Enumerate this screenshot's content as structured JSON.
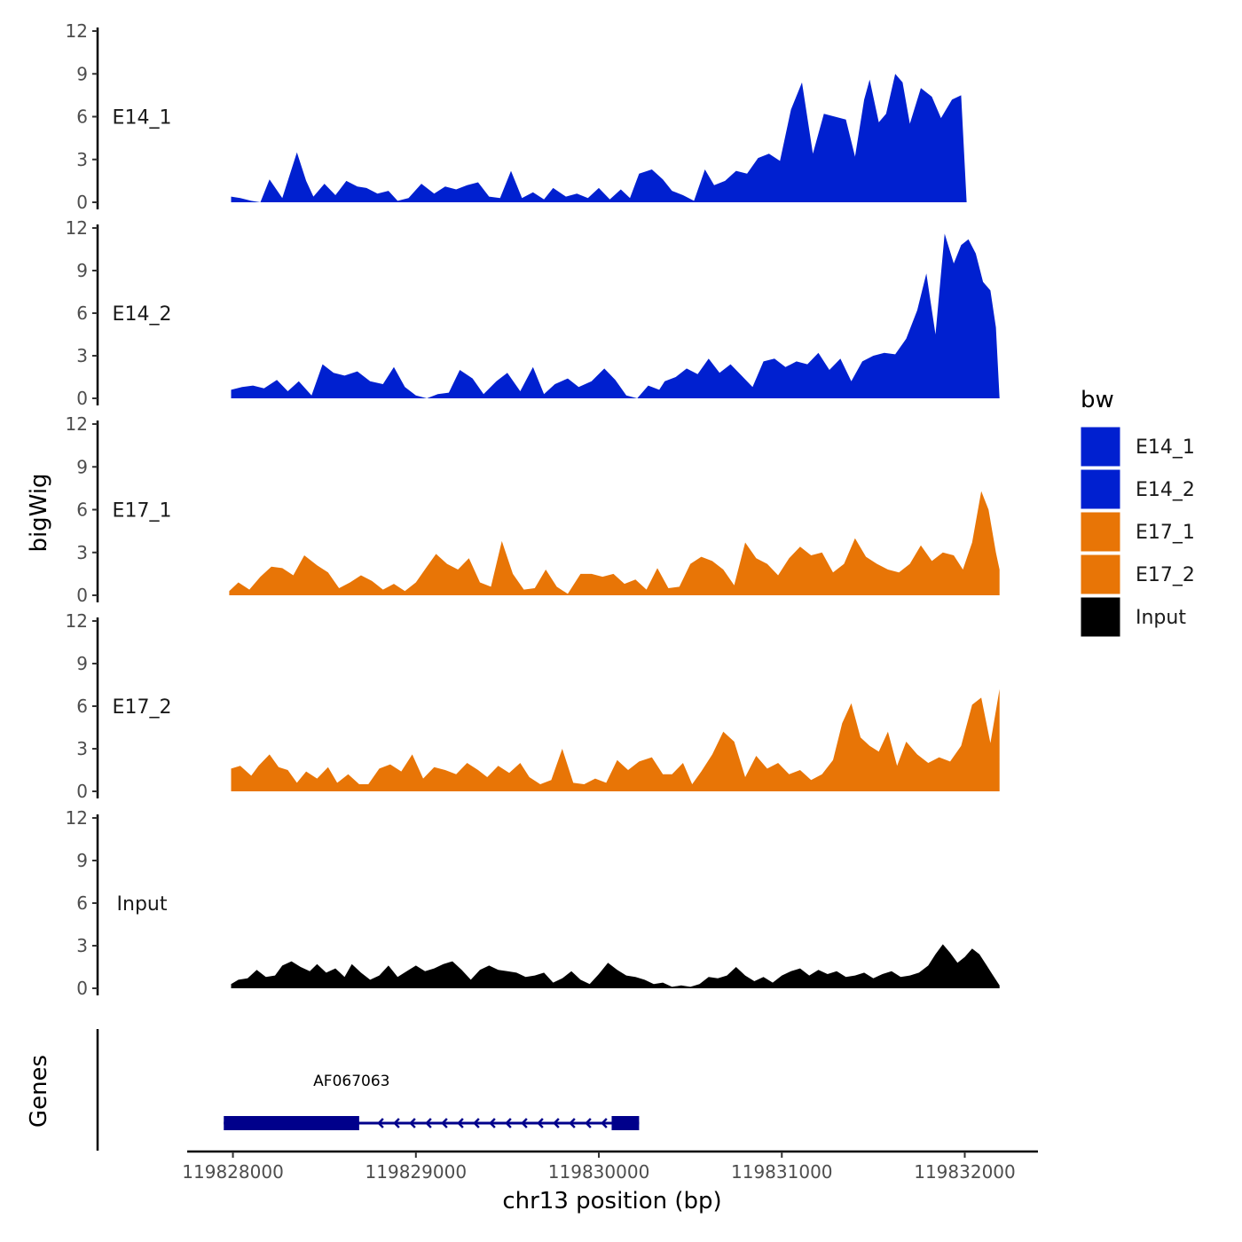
{
  "chart_data": {
    "type": "area",
    "title": "",
    "xlabel": "chr13 position (bp)",
    "ylabel": "bigWig",
    "xlim": [
      119827750,
      119832400
    ],
    "ylim": [
      0,
      12
    ],
    "x_ticks": [
      119828000,
      119829000,
      119830000,
      119831000,
      119832000
    ],
    "y_ticks": [
      0,
      3,
      6,
      9,
      12
    ],
    "legend": {
      "title": "bw",
      "position": "right",
      "entries": [
        {
          "label": "E14_1",
          "color": "#0020d0"
        },
        {
          "label": "E14_2",
          "color": "#0020d0"
        },
        {
          "label": "E17_1",
          "color": "#e87506"
        },
        {
          "label": "E17_2",
          "color": "#e87506"
        },
        {
          "label": "Input",
          "color": "#000000"
        }
      ]
    },
    "tracks": [
      {
        "name": "E14_1",
        "color": "#0020d0",
        "x": [
          119827990,
          119828040,
          119828100,
          119828150,
          119828200,
          119828270,
          119828350,
          119828400,
          119828440,
          119828500,
          119828560,
          119828620,
          119828680,
          119828730,
          119828790,
          119828850,
          119828900,
          119828960,
          119829030,
          119829100,
          119829160,
          119829220,
          119829280,
          119829340,
          119829400,
          119829460,
          119829520,
          119829580,
          119829640,
          119829700,
          119829750,
          119829820,
          119829880,
          119829940,
          119830000,
          119830060,
          119830120,
          119830170,
          119830220,
          119830290,
          119830350,
          119830400,
          119830460,
          119830520,
          119830580,
          119830630,
          119830690,
          119830750,
          119830810,
          119830870,
          119830930,
          119830990,
          119831050,
          119831110,
          119831170,
          119831230,
          119831290,
          119831350,
          119831400,
          119831450,
          119831480,
          119831530,
          119831570,
          119831620,
          119831660,
          119831700,
          119831760,
          119831820,
          119831870,
          119831930,
          119831980,
          119832010,
          119832040,
          119832080,
          119832120,
          119832160,
          119832190,
          119832190
        ],
        "values": [
          0.4,
          0.3,
          0.1,
          0.0,
          1.6,
          0.3,
          3.5,
          1.5,
          0.4,
          1.3,
          0.5,
          1.5,
          1.1,
          1.0,
          0.6,
          0.8,
          0.1,
          0.3,
          1.3,
          0.6,
          1.1,
          0.9,
          1.2,
          1.4,
          0.4,
          0.3,
          2.2,
          0.3,
          0.7,
          0.2,
          1.0,
          0.4,
          0.6,
          0.3,
          1.0,
          0.2,
          0.9,
          0.3,
          2.0,
          2.3,
          1.6,
          0.8,
          0.5,
          0.1,
          2.3,
          1.2,
          1.5,
          2.2,
          2.0,
          3.1,
          3.4,
          2.9,
          6.5,
          8.4,
          3.4,
          6.2,
          6.0,
          5.8,
          3.2,
          7.2,
          8.6,
          5.6,
          6.2,
          9.0,
          8.4,
          5.5,
          8.0,
          7.4,
          5.9,
          7.2,
          7.5,
          0.0,
          0.0,
          0.0,
          0.0,
          0.0,
          0.0,
          0.0
        ]
      },
      {
        "name": "E14_2",
        "color": "#0020d0",
        "x": [
          119827990,
          119828050,
          119828110,
          119828170,
          119828240,
          119828300,
          119828360,
          119828430,
          119828490,
          119828550,
          119828610,
          119828680,
          119828750,
          119828820,
          119828880,
          119828940,
          119829000,
          119829060,
          119829120,
          119829180,
          119829240,
          119829310,
          119829370,
          119829440,
          119829500,
          119829570,
          119829640,
          119829700,
          119829760,
          119829830,
          119829890,
          119829960,
          119830030,
          119830090,
          119830150,
          119830210,
          119830270,
          119830330,
          119830360,
          119830420,
          119830480,
          119830540,
          119830600,
          119830660,
          119830720,
          119830780,
          119830840,
          119830900,
          119830960,
          119831020,
          119831080,
          119831140,
          119831200,
          119831260,
          119831320,
          119831380,
          119831440,
          119831500,
          119831560,
          119831620,
          119831680,
          119831740,
          119831790,
          119831840,
          119831890,
          119831940,
          119831980,
          119832020,
          119832060,
          119832100,
          119832140,
          119832170,
          119832190
        ],
        "values": [
          0.6,
          0.8,
          0.9,
          0.7,
          1.3,
          0.5,
          1.2,
          0.2,
          2.4,
          1.8,
          1.6,
          1.9,
          1.2,
          1.0,
          2.2,
          0.8,
          0.2,
          0.0,
          0.3,
          0.4,
          2.0,
          1.4,
          0.3,
          1.2,
          1.8,
          0.5,
          2.2,
          0.3,
          1.0,
          1.4,
          0.8,
          1.2,
          2.1,
          1.3,
          0.2,
          0.0,
          0.9,
          0.6,
          1.2,
          1.5,
          2.1,
          1.7,
          2.8,
          1.8,
          2.4,
          1.6,
          0.8,
          2.6,
          2.8,
          2.2,
          2.6,
          2.4,
          3.2,
          2.0,
          2.8,
          1.2,
          2.6,
          3.0,
          3.2,
          3.1,
          4.2,
          6.2,
          8.8,
          4.5,
          11.6,
          9.5,
          10.8,
          11.2,
          10.2,
          8.2,
          7.6,
          5.0,
          0.0
        ]
      },
      {
        "name": "E17_1",
        "color": "#e87506",
        "x": [
          119827980,
          119828030,
          119828090,
          119828150,
          119828210,
          119828270,
          119828330,
          119828390,
          119828460,
          119828520,
          119828580,
          119828640,
          119828700,
          119828760,
          119828820,
          119828880,
          119828940,
          119829000,
          119829060,
          119829110,
          119829170,
          119829230,
          119829290,
          119829350,
          119829410,
          119829470,
          119829530,
          119829590,
          119829650,
          119829710,
          119829770,
          119829830,
          119829900,
          119829960,
          119830020,
          119830080,
          119830140,
          119830200,
          119830260,
          119830320,
          119830380,
          119830440,
          119830500,
          119830560,
          119830620,
          119830680,
          119830740,
          119830800,
          119830860,
          119830920,
          119830980,
          119831040,
          119831100,
          119831160,
          119831220,
          119831280,
          119831340,
          119831400,
          119831460,
          119831520,
          119831580,
          119831640,
          119831700,
          119831760,
          119831820,
          119831880,
          119831940,
          119831990,
          119832040,
          119832090,
          119832130,
          119832170,
          119832190
        ],
        "values": [
          0.3,
          0.9,
          0.4,
          1.3,
          2.0,
          1.9,
          1.4,
          2.8,
          2.1,
          1.6,
          0.5,
          0.9,
          1.4,
          1.0,
          0.4,
          0.8,
          0.3,
          0.9,
          2.0,
          2.9,
          2.2,
          1.8,
          2.6,
          0.9,
          0.6,
          3.8,
          1.5,
          0.4,
          0.5,
          1.8,
          0.6,
          0.1,
          1.5,
          1.5,
          1.3,
          1.5,
          0.8,
          1.1,
          0.4,
          1.9,
          0.5,
          0.6,
          2.2,
          2.7,
          2.4,
          1.8,
          0.7,
          3.7,
          2.6,
          2.2,
          1.4,
          2.6,
          3.4,
          2.8,
          3.0,
          1.6,
          2.2,
          4.0,
          2.7,
          2.2,
          1.8,
          1.6,
          2.2,
          3.5,
          2.4,
          3.0,
          2.8,
          1.8,
          3.7,
          7.3,
          6.0,
          3.0,
          1.8
        ]
      },
      {
        "name": "E17_2",
        "color": "#e87506",
        "x": [
          119827990,
          119828040,
          119828100,
          119828140,
          119828200,
          119828250,
          119828300,
          119828350,
          119828400,
          119828460,
          119828520,
          119828570,
          119828630,
          119828690,
          119828740,
          119828800,
          119828860,
          119828920,
          119828980,
          119829040,
          119829100,
          119829160,
          119829220,
          119829280,
          119829340,
          119829390,
          119829450,
          119829510,
          119829570,
          119829620,
          119829680,
          119829740,
          119829800,
          119829860,
          119829920,
          119829980,
          119830040,
          119830100,
          119830160,
          119830220,
          119830290,
          119830350,
          119830400,
          119830460,
          119830510,
          119830560,
          119830620,
          119830680,
          119830740,
          119830800,
          119830860,
          119830920,
          119830980,
          119831040,
          119831100,
          119831160,
          119831220,
          119831280,
          119831330,
          119831380,
          119831430,
          119831480,
          119831530,
          119831580,
          119831630,
          119831680,
          119831740,
          119831800,
          119831860,
          119831920,
          119831980,
          119832040,
          119832090,
          119832140,
          119832190
        ],
        "values": [
          1.6,
          1.8,
          1.1,
          1.8,
          2.6,
          1.7,
          1.5,
          0.6,
          1.4,
          0.9,
          1.7,
          0.6,
          1.2,
          0.5,
          0.5,
          1.6,
          1.9,
          1.4,
          2.6,
          0.9,
          1.7,
          1.5,
          1.2,
          2.0,
          1.5,
          1.0,
          1.8,
          1.3,
          2.0,
          1.0,
          0.5,
          0.8,
          3.0,
          0.6,
          0.5,
          0.9,
          0.6,
          2.2,
          1.5,
          2.1,
          2.4,
          1.2,
          1.2,
          2.0,
          0.5,
          1.4,
          2.6,
          4.2,
          3.5,
          1.0,
          2.5,
          1.6,
          2.0,
          1.2,
          1.5,
          0.8,
          1.2,
          2.2,
          4.8,
          6.2,
          3.8,
          3.2,
          2.8,
          4.2,
          1.8,
          3.5,
          2.6,
          2.0,
          2.4,
          2.1,
          3.2,
          6.1,
          6.6,
          3.4,
          7.2
        ]
      },
      {
        "name": "Input",
        "color": "#000000",
        "x": [
          119827990,
          119828030,
          119828080,
          119828130,
          119828180,
          119828230,
          119828270,
          119828320,
          119828370,
          119828420,
          119828460,
          119828510,
          119828560,
          119828610,
          119828650,
          119828700,
          119828750,
          119828800,
          119828850,
          119828900,
          119828950,
          119829000,
          119829050,
          119829100,
          119829150,
          119829200,
          119829250,
          119829300,
          119829350,
          119829400,
          119829450,
          119829500,
          119829550,
          119829600,
          119829650,
          119829700,
          119829750,
          119829800,
          119829850,
          119829900,
          119829950,
          119830000,
          119830050,
          119830100,
          119830150,
          119830200,
          119830250,
          119830300,
          119830350,
          119830400,
          119830450,
          119830500,
          119830550,
          119830600,
          119830650,
          119830700,
          119830750,
          119830800,
          119830850,
          119830900,
          119830950,
          119831000,
          119831050,
          119831100,
          119831150,
          119831200,
          119831250,
          119831300,
          119831350,
          119831400,
          119831450,
          119831500,
          119831550,
          119831600,
          119831650,
          119831700,
          119831750,
          119831800,
          119831840,
          119831880,
          119831920,
          119831960,
          119832000,
          119832040,
          119832080,
          119832120,
          119832150,
          119832190
        ],
        "values": [
          0.3,
          0.6,
          0.7,
          1.3,
          0.8,
          0.9,
          1.6,
          1.9,
          1.5,
          1.2,
          1.7,
          1.1,
          1.4,
          0.8,
          1.7,
          1.1,
          0.6,
          0.9,
          1.6,
          0.8,
          1.2,
          1.6,
          1.2,
          1.4,
          1.7,
          1.9,
          1.3,
          0.6,
          1.3,
          1.6,
          1.3,
          1.2,
          1.1,
          0.8,
          0.9,
          1.1,
          0.4,
          0.7,
          1.2,
          0.6,
          0.3,
          1.0,
          1.8,
          1.3,
          0.9,
          0.8,
          0.6,
          0.3,
          0.4,
          0.1,
          0.2,
          0.1,
          0.3,
          0.8,
          0.7,
          0.9,
          1.5,
          0.9,
          0.5,
          0.8,
          0.4,
          0.9,
          1.2,
          1.4,
          0.9,
          1.3,
          1.0,
          1.2,
          0.8,
          0.9,
          1.1,
          0.7,
          1.0,
          1.2,
          0.8,
          0.9,
          1.1,
          1.6,
          2.4,
          3.1,
          2.5,
          1.8,
          2.2,
          2.8,
          2.4,
          1.6,
          1.0,
          0.2
        ]
      }
    ],
    "genes": {
      "ylabel": "Genes",
      "items": [
        {
          "name": "AF067063",
          "start": 119827950,
          "end": 119830220,
          "strand": "-",
          "exons": [
            [
              119827950,
              119828690
            ],
            [
              119830070,
              119830220
            ]
          ]
        }
      ]
    }
  }
}
